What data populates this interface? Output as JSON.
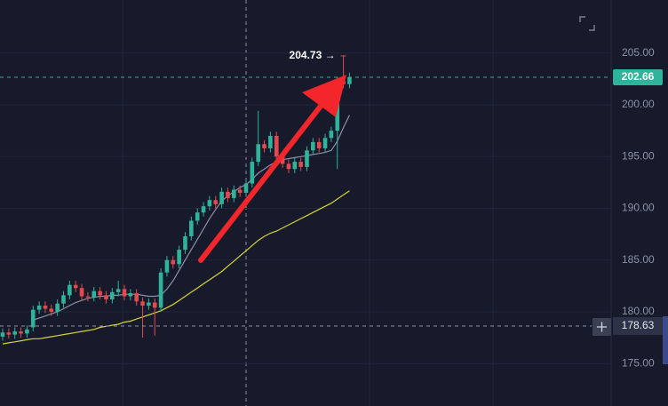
{
  "chart_data": {
    "type": "candlestick",
    "up_color": "#2fb39a",
    "down_color": "#e24a4f",
    "open": [
      177.6,
      178.0,
      177.8,
      178.1,
      177.9,
      178.5,
      180.2,
      180.6,
      180.3,
      180.0,
      180.8,
      181.6,
      182.6,
      182.3,
      181.5,
      181.4,
      182.0,
      181.6,
      181.2,
      181.9,
      182.2,
      181.5,
      181.8,
      181.0,
      180.6,
      180.9,
      180.4,
      183.8,
      185.0,
      184.6,
      186.0,
      187.3,
      188.8,
      189.6,
      190.2,
      190.8,
      190.4,
      191.6,
      191.0,
      191.8,
      191.5,
      192.4,
      194.5,
      196.2,
      195.8,
      197.0,
      195.0,
      194.3,
      193.8,
      194.5,
      194.0,
      195.6,
      196.4,
      195.8,
      196.8,
      197.5,
      202.3,
      202.0
    ],
    "high": [
      178.4,
      178.4,
      178.5,
      178.5,
      178.7,
      180.6,
      181.0,
      181.0,
      180.7,
      181.2,
      182.0,
      183.0,
      183.0,
      182.7,
      181.9,
      182.4,
      182.4,
      182.0,
      182.3,
      183.0,
      182.6,
      182.2,
      182.2,
      181.4,
      181.3,
      181.3,
      184.2,
      185.4,
      185.4,
      186.4,
      187.7,
      189.2,
      190.0,
      190.6,
      191.2,
      191.2,
      192.0,
      192.0,
      192.2,
      192.2,
      192.8,
      194.9,
      199.4,
      196.6,
      197.4,
      197.4,
      195.4,
      194.7,
      194.9,
      194.9,
      196.0,
      196.8,
      196.8,
      197.2,
      197.9,
      202.7,
      204.73,
      203.1
    ],
    "low": [
      177.2,
      177.4,
      177.4,
      177.5,
      177.5,
      178.1,
      179.8,
      179.9,
      179.6,
      179.6,
      180.4,
      181.2,
      181.9,
      181.1,
      181.0,
      181.0,
      181.2,
      180.8,
      180.8,
      181.5,
      181.1,
      181.1,
      180.6,
      177.5,
      180.2,
      177.7,
      180.0,
      183.4,
      184.2,
      184.2,
      185.6,
      186.9,
      188.4,
      189.2,
      189.8,
      190.0,
      190.0,
      190.6,
      190.6,
      191.1,
      191.1,
      192.0,
      194.1,
      195.4,
      195.4,
      194.6,
      193.9,
      193.4,
      193.4,
      193.6,
      193.6,
      195.2,
      195.4,
      195.4,
      196.4,
      193.8,
      201.6,
      201.6
    ],
    "close": [
      178.0,
      177.8,
      178.1,
      177.9,
      178.3,
      180.2,
      180.6,
      180.3,
      180.0,
      180.8,
      181.6,
      182.6,
      182.3,
      181.5,
      181.4,
      182.0,
      181.6,
      181.2,
      181.9,
      182.2,
      181.5,
      181.8,
      181.0,
      180.6,
      180.9,
      180.4,
      183.8,
      185.0,
      184.6,
      186.0,
      187.3,
      188.8,
      189.6,
      190.2,
      190.8,
      190.4,
      191.6,
      191.0,
      191.8,
      191.5,
      192.4,
      194.5,
      196.2,
      195.8,
      197.0,
      195.0,
      194.3,
      193.8,
      194.5,
      194.0,
      195.6,
      196.4,
      195.8,
      196.8,
      197.5,
      202.3,
      202.0,
      202.66
    ],
    "moving_averages": [
      {
        "color": "#8b8fa8",
        "values": [
          null,
          null,
          null,
          null,
          null,
          179.2,
          179.4,
          179.6,
          179.8,
          180.0,
          180.3,
          180.6,
          180.9,
          181.1,
          181.3,
          181.4,
          181.5,
          181.5,
          181.6,
          181.6,
          181.7,
          181.7,
          181.7,
          181.6,
          181.5,
          181.5,
          181.6,
          182.2,
          183.0,
          184.0,
          185.0,
          186.0,
          187.0,
          188.0,
          189.0,
          189.9,
          190.7,
          191.2,
          191.6,
          192.0,
          192.3,
          192.8,
          193.4,
          193.8,
          194.2,
          194.5,
          194.7,
          194.8,
          194.9,
          195.0,
          195.1,
          195.2,
          195.3,
          195.4,
          195.6,
          196.5,
          197.8,
          199.0
        ]
      },
      {
        "color": "#d8d23a",
        "values": [
          176.9,
          177.0,
          177.1,
          177.2,
          177.3,
          177.4,
          177.4,
          177.5,
          177.6,
          177.7,
          177.8,
          177.9,
          178.0,
          178.1,
          178.2,
          178.3,
          178.5,
          178.6,
          178.7,
          178.8,
          179.0,
          179.1,
          179.3,
          179.5,
          179.7,
          179.9,
          180.1,
          180.4,
          180.7,
          181.1,
          181.5,
          181.9,
          182.3,
          182.7,
          183.1,
          183.5,
          183.9,
          184.4,
          184.9,
          185.4,
          185.9,
          186.4,
          186.9,
          187.3,
          187.6,
          187.8,
          188.1,
          188.4,
          188.7,
          189.0,
          189.3,
          189.6,
          189.9,
          190.2,
          190.5,
          190.9,
          191.3,
          191.7
        ]
      }
    ],
    "ylim": [
      170.9,
      210.13
    ],
    "yticks": [
      {
        "value": 175,
        "label": "175.00"
      },
      {
        "value": 180,
        "label": "180.00"
      },
      {
        "value": 185,
        "label": "185.00"
      },
      {
        "value": 190,
        "label": "190.00"
      },
      {
        "value": 195,
        "label": "195.00"
      },
      {
        "value": 200,
        "label": "200.00"
      },
      {
        "value": 205,
        "label": "205.00"
      }
    ],
    "last_price": 202.66,
    "high_marker": {
      "value": 204.73,
      "label": "204.73 →"
    },
    "crosshair_price": 178.63
  }
}
